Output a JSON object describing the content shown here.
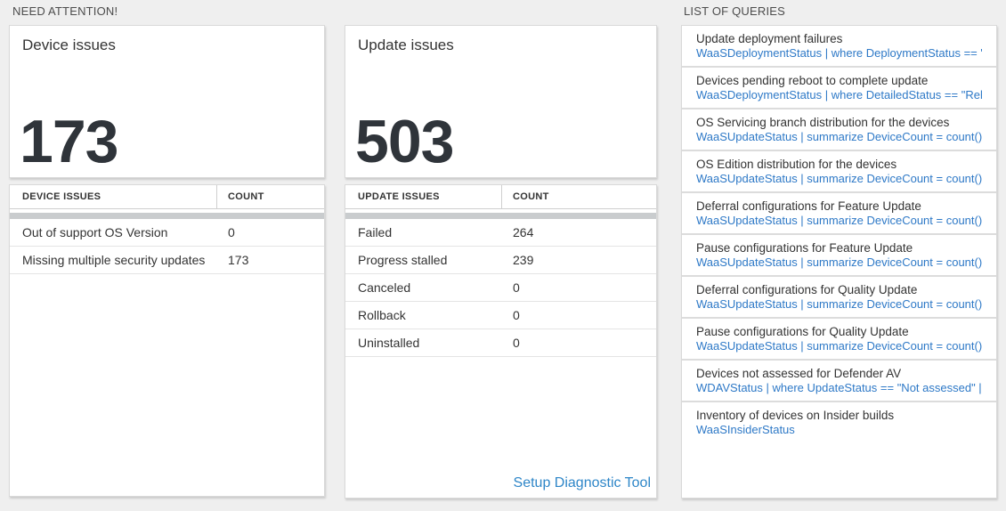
{
  "sections": {
    "need_attention_label": "NEED ATTENTION!",
    "list_of_queries_label": "LIST OF QUERIES"
  },
  "device_card": {
    "title": "Device issues",
    "count": "173"
  },
  "device_table": {
    "header_issue": "DEVICE ISSUES",
    "header_count": "COUNT",
    "rows": [
      {
        "label": "Out of support OS Version",
        "count": "0"
      },
      {
        "label": "Missing multiple security updates",
        "count": "173"
      }
    ]
  },
  "update_card": {
    "title": "Update issues",
    "count": "503"
  },
  "update_table": {
    "header_issue": "UPDATE ISSUES",
    "header_count": "COUNT",
    "rows": [
      {
        "label": "Failed",
        "count": "264"
      },
      {
        "label": "Progress stalled",
        "count": "239"
      },
      {
        "label": "Canceled",
        "count": "0"
      },
      {
        "label": "Rollback",
        "count": "0"
      },
      {
        "label": "Uninstalled",
        "count": "0"
      }
    ],
    "link_label": "Setup Diagnostic Tool"
  },
  "queries": {
    "items": [
      {
        "title": "Update deployment failures",
        "query": "WaaSDeploymentStatus | where DeploymentStatus == \"Failed\" |..."
      },
      {
        "title": "Devices pending reboot to complete update",
        "query": "WaaSDeploymentStatus | where DetailedStatus == \"Reboot pend..."
      },
      {
        "title": "OS Servicing branch distribution for the devices",
        "query": "WaaSUpdateStatus | summarize DeviceCount = count() by OSSer..."
      },
      {
        "title": "OS Edition distribution for the devices",
        "query": "WaaSUpdateStatus | summarize DeviceCount = count() by OSEdit..."
      },
      {
        "title": "Deferral configurations for Feature Update",
        "query": "WaaSUpdateStatus | summarize DeviceCount = count() by Featur..."
      },
      {
        "title": "Pause configurations for Feature Update",
        "query": "WaaSUpdateStatus | summarize DeviceCount = count() by Featur..."
      },
      {
        "title": "Deferral configurations for Quality Update",
        "query": "WaaSUpdateStatus | summarize DeviceCount = count() by Qualit..."
      },
      {
        "title": "Pause configurations for Quality Update",
        "query": "WaaSUpdateStatus | summarize DeviceCount = count() by Qualit..."
      },
      {
        "title": "Devices not assessed for Defender AV",
        "query": "WDAVStatus | where UpdateStatus == \"Not assessed\" | render ta..."
      },
      {
        "title": "Inventory of devices on Insider builds",
        "query": "WaaSInsiderStatus"
      }
    ]
  },
  "colors": {
    "background": "#efefef",
    "card_background": "#ffffff",
    "query_blue": "#2e79c7",
    "link_blue": "#2e86c8",
    "text_dark": "#333333",
    "scrollbar_gray": "#c9ccce"
  }
}
